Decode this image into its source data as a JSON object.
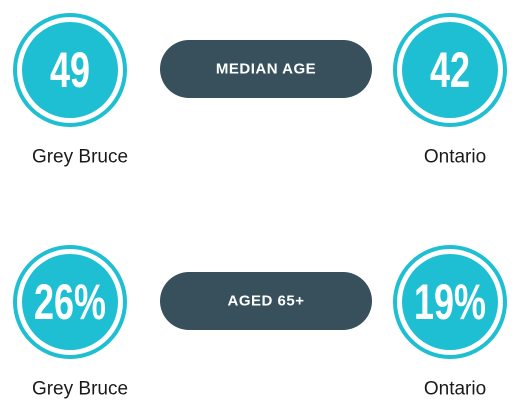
{
  "rows": [
    {
      "label": "MEDIAN AGE",
      "left": {
        "value": "49",
        "name": "Grey Bruce"
      },
      "right": {
        "value": "42",
        "name": "Ontario"
      }
    },
    {
      "label": "AGED 65+",
      "left": {
        "value": "26%",
        "name": "Grey Bruce"
      },
      "right": {
        "value": "19%",
        "name": "Ontario"
      }
    }
  ]
}
